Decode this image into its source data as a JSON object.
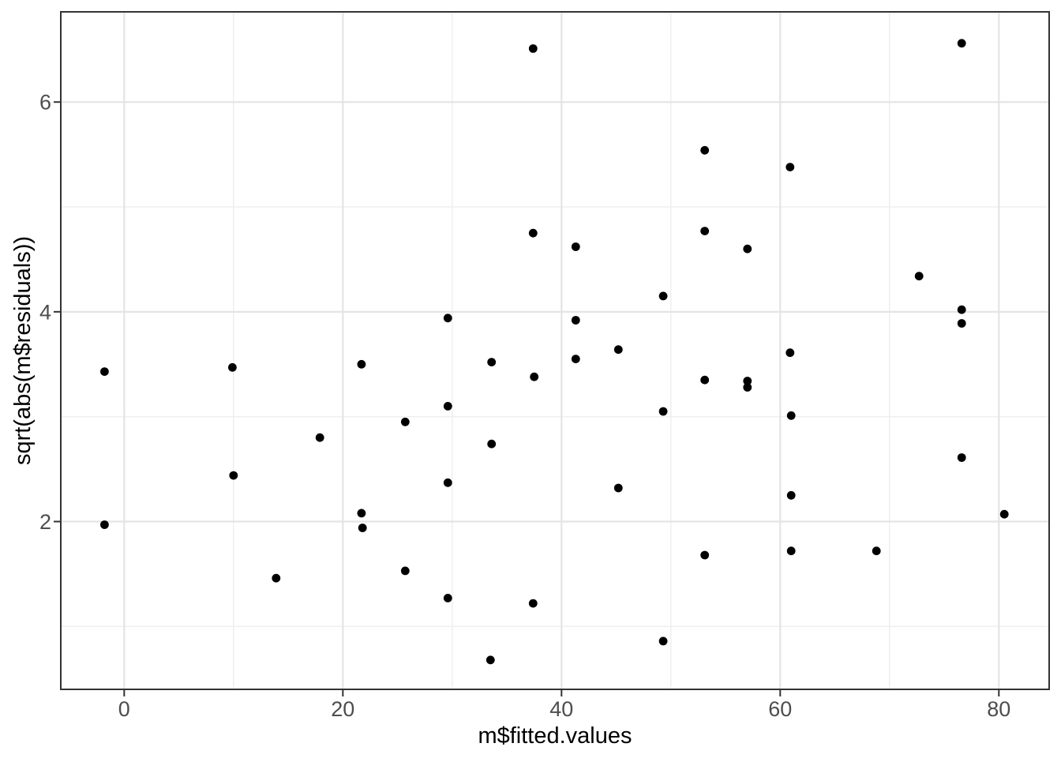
{
  "figure": {
    "kind": "ggplot-scatter",
    "background": "#ffffff"
  },
  "chart_data": {
    "type": "scatter",
    "title": "",
    "xlabel": "m$fitted.values",
    "ylabel": "sqrt(abs(m$residuals))",
    "legend": "none",
    "grid": "on",
    "x_domain": [
      -5.8,
      84.6
    ],
    "y_domain": [
      0.4,
      6.86
    ],
    "x_ticks": [
      0,
      20,
      40,
      60,
      80
    ],
    "x_tick_labels": [
      "0",
      "20",
      "40",
      "60",
      "80"
    ],
    "y_ticks": [
      2,
      4,
      6
    ],
    "y_tick_labels": [
      "2",
      "4",
      "6"
    ],
    "x_minor_gridlines": [
      10,
      30,
      50,
      70
    ],
    "y_minor_gridlines": [
      1,
      3,
      5
    ],
    "point_radius_px": 5.4,
    "points": [
      [
        -1.8,
        3.43
      ],
      [
        -1.8,
        1.97
      ],
      [
        9.9,
        3.47
      ],
      [
        10.0,
        2.44
      ],
      [
        13.9,
        1.46
      ],
      [
        17.9,
        2.8
      ],
      [
        21.7,
        3.5
      ],
      [
        21.7,
        2.08
      ],
      [
        21.8,
        1.94
      ],
      [
        25.7,
        2.95
      ],
      [
        25.7,
        1.53
      ],
      [
        29.6,
        3.94
      ],
      [
        29.6,
        3.1
      ],
      [
        29.6,
        2.37
      ],
      [
        29.6,
        1.27
      ],
      [
        33.6,
        3.52
      ],
      [
        33.6,
        2.74
      ],
      [
        33.5,
        0.68
      ],
      [
        37.4,
        6.51
      ],
      [
        37.4,
        4.75
      ],
      [
        37.5,
        3.38
      ],
      [
        37.4,
        1.22
      ],
      [
        41.3,
        4.62
      ],
      [
        41.3,
        3.92
      ],
      [
        41.3,
        3.55
      ],
      [
        45.2,
        3.64
      ],
      [
        45.2,
        2.32
      ],
      [
        49.3,
        4.15
      ],
      [
        49.3,
        3.05
      ],
      [
        49.3,
        0.86
      ],
      [
        53.1,
        5.54
      ],
      [
        53.1,
        4.77
      ],
      [
        53.1,
        3.35
      ],
      [
        53.1,
        1.68
      ],
      [
        57.0,
        4.6
      ],
      [
        57.0,
        3.34
      ],
      [
        57.0,
        3.28
      ],
      [
        60.9,
        5.38
      ],
      [
        60.9,
        3.61
      ],
      [
        61.0,
        3.01
      ],
      [
        61.0,
        2.25
      ],
      [
        61.0,
        1.72
      ],
      [
        68.8,
        1.72
      ],
      [
        72.7,
        4.34
      ],
      [
        76.6,
        6.56
      ],
      [
        76.6,
        4.02
      ],
      [
        76.6,
        3.89
      ],
      [
        76.6,
        2.61
      ],
      [
        80.5,
        2.07
      ]
    ],
    "colors": {
      "point": "#000000",
      "panel_background": "#ffffff",
      "panel_border": "#333333",
      "grid_major": "#e4e4e4",
      "grid_minor": "#efefef",
      "tick_mark": "#333333",
      "tick_label": "#4d4d4d",
      "axis_title": "#000000"
    }
  }
}
